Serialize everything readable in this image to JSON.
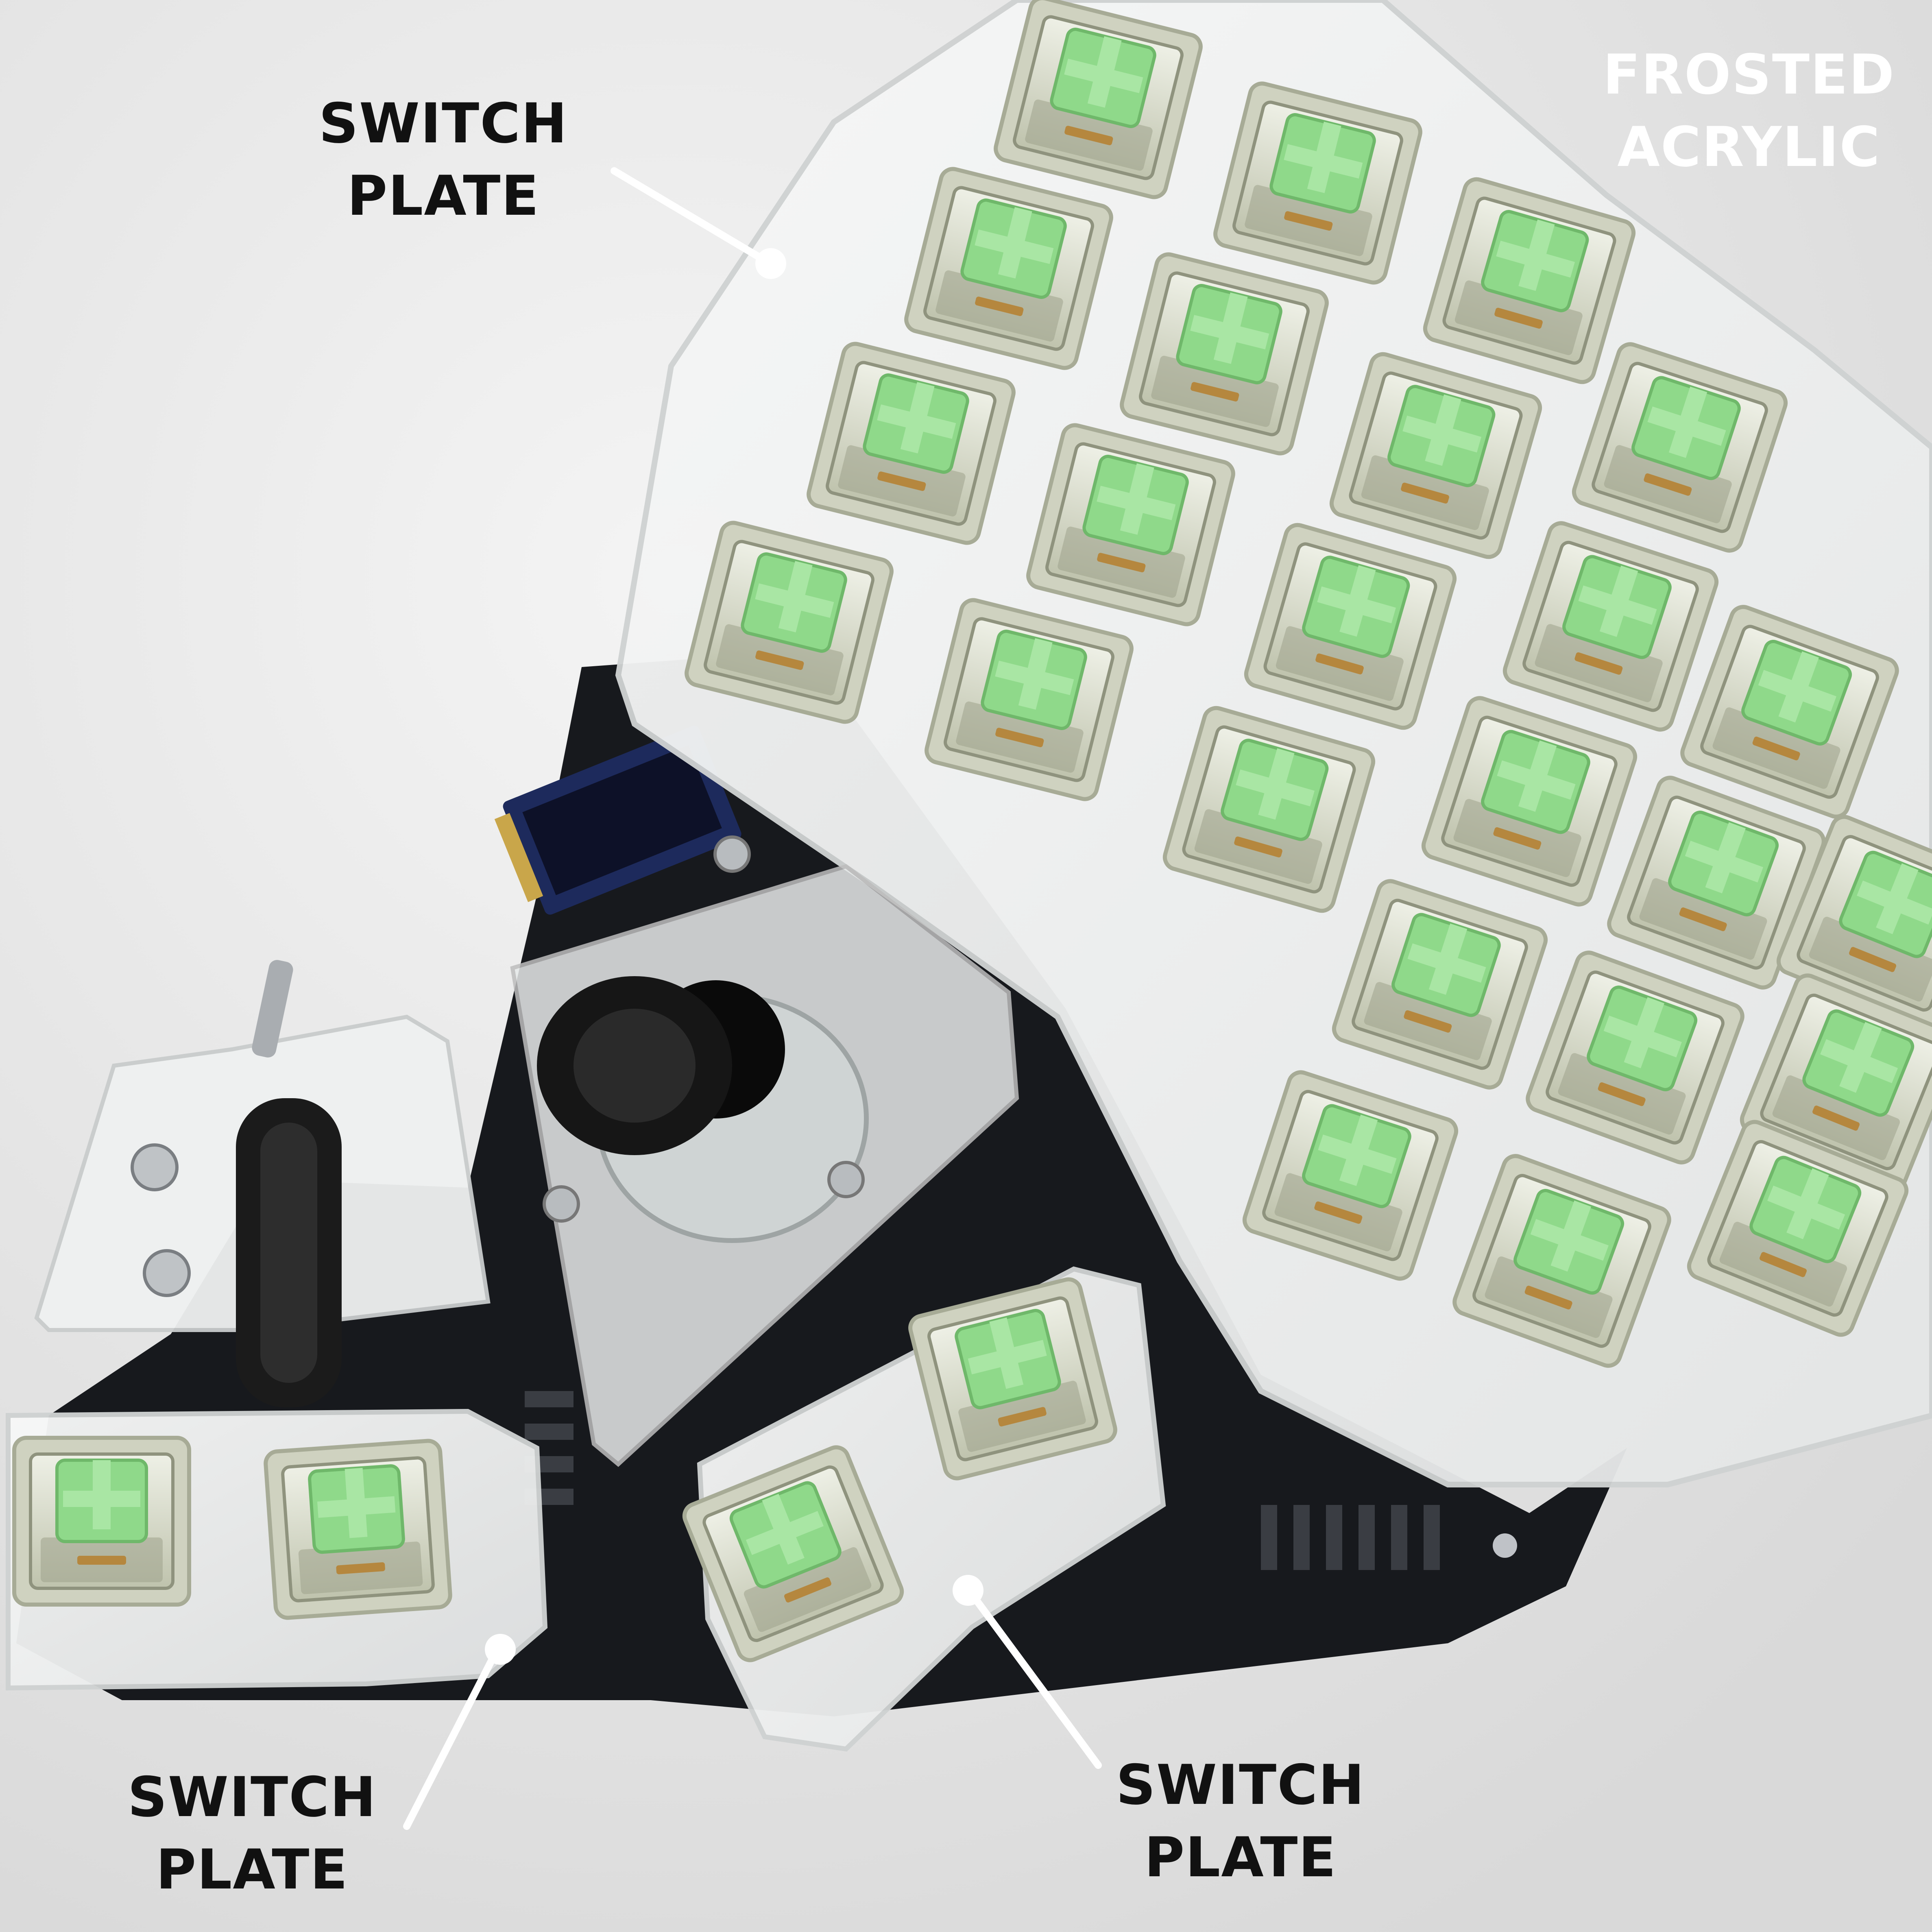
{
  "labels": {
    "top_left": {
      "line1": "SWITCH",
      "line2": "PLATE"
    },
    "top_right": {
      "line1": "FROSTED",
      "line2": "ACRYLIC"
    },
    "bottom_left": {
      "line1": "SWITCH",
      "line2": "PLATE"
    },
    "bottom_right": {
      "line1": "SWITCH",
      "line2": "PLATE"
    }
  },
  "colors": {
    "background": "#e9e9e9",
    "acrylic": "#f2f3f3",
    "pcb": "#17191d",
    "switch_stem": "#8fd98a",
    "switch_housing": "#d9dccb",
    "label_dark": "#111111",
    "label_light": "#ffffff",
    "leader_line": "#ffffff"
  }
}
